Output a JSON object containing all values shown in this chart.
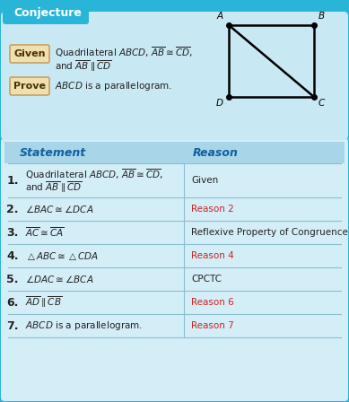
{
  "title": "Conjecture",
  "outer_bg": "#29B5D8",
  "inner_top_bg": "#C8E8F3",
  "table_bg": "#D4EEF8",
  "table_hdr_bg": "#A8D5E8",
  "label_bg": "#F0E0B0",
  "label_border": "#C8A060",
  "title_color": "#FFFFFF",
  "header_bg": "#29B5D8",
  "statement_header": "Statement",
  "reason_header": "Reason",
  "hdr_text_color": "#1060A0",
  "black_color": "#222222",
  "red_color": "#CC2222",
  "given_label": "Given",
  "prove_label": "Prove",
  "rows": [
    {
      "num": "1.",
      "statement": "Quadrilateral $ABCD$, $\\overline{AB}\\cong\\overline{CD}$,\nand $\\overline{AB}\\parallel\\overline{CD}$",
      "reason": "Given",
      "reason_red": false
    },
    {
      "num": "2.",
      "statement": "$\\angle BAC\\cong\\angle DCA$",
      "reason": "Reason 2",
      "reason_red": true
    },
    {
      "num": "3.",
      "statement": "$\\overline{AC}\\cong\\overline{CA}$",
      "reason": "Reflexive Property of Congruence",
      "reason_red": false
    },
    {
      "num": "4.",
      "statement": "$\\triangle ABC\\cong\\triangle CDA$",
      "reason": "Reason 4",
      "reason_red": true
    },
    {
      "num": "5.",
      "statement": "$\\angle DAC\\cong\\angle BCA$",
      "reason": "CPCTC",
      "reason_red": false
    },
    {
      "num": "6.",
      "statement": "$\\overline{AD}\\parallel\\overline{CB}$",
      "reason": "Reason 6",
      "reason_red": true
    },
    {
      "num": "7.",
      "statement": "$ABCD$ is a parallelogram.",
      "reason": "Reason 7",
      "reason_red": true
    }
  ]
}
